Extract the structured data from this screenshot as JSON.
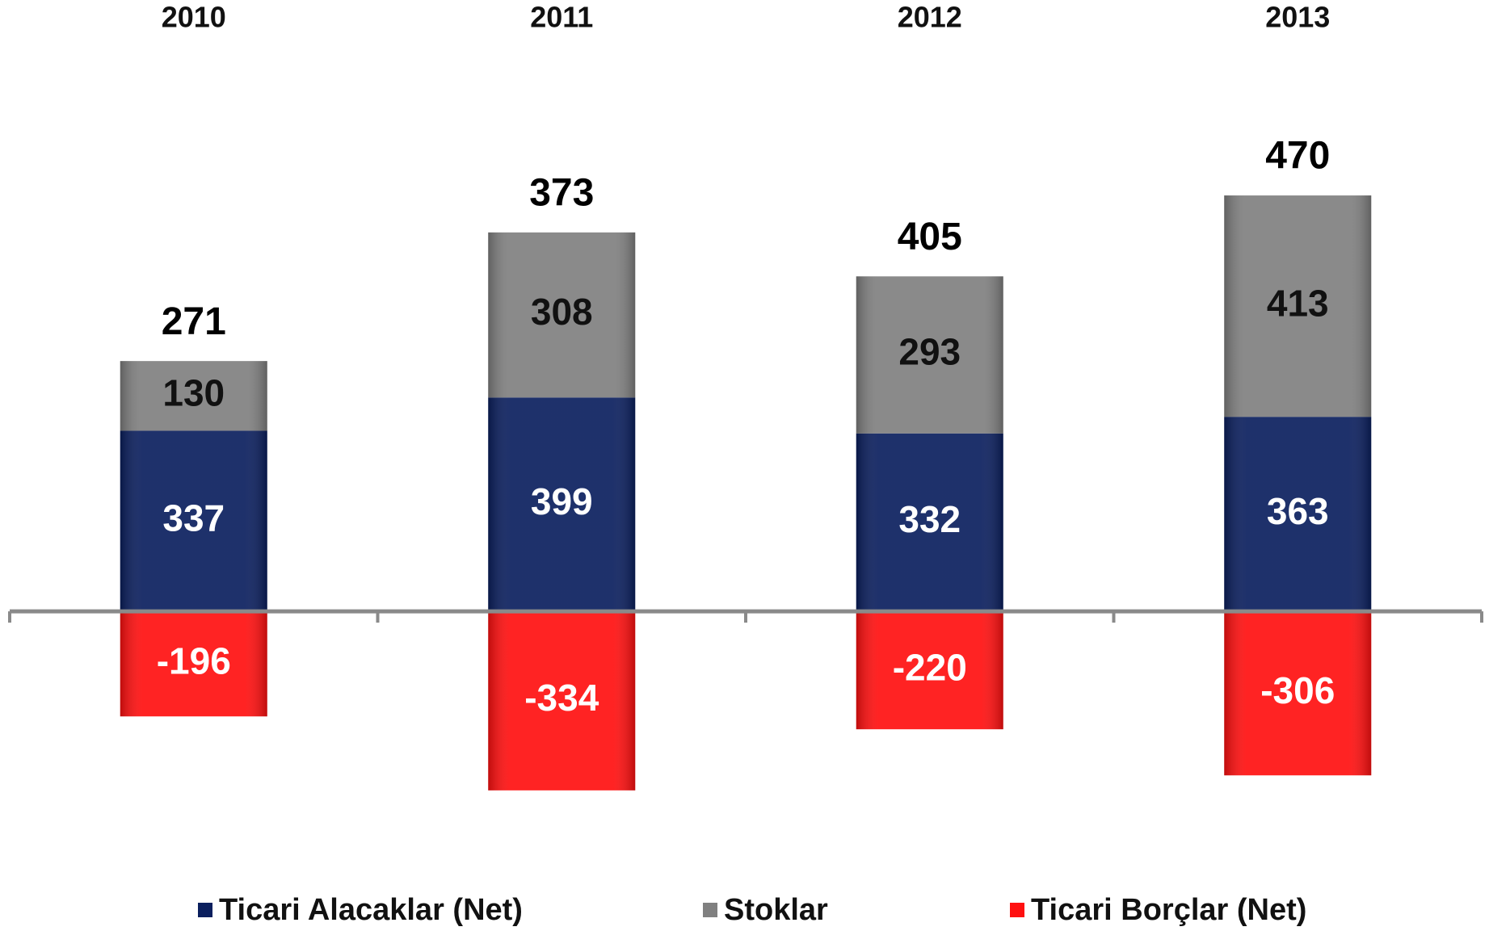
{
  "chart_data": {
    "type": "stacked-bar",
    "categories": [
      "2010",
      "2011",
      "2012",
      "2013"
    ],
    "series": [
      {
        "name": "Ticari Alacaklar (Net)",
        "color": "#0b1f5e",
        "values": [
          337,
          399,
          332,
          363
        ]
      },
      {
        "name": "Stoklar",
        "color": "#808080",
        "values": [
          130,
          308,
          293,
          413
        ]
      },
      {
        "name": "Ticari Borçlar (Net)",
        "color": "#ff1010",
        "values": [
          -196,
          -334,
          -220,
          -306
        ]
      }
    ],
    "totals": [
      271,
      373,
      405,
      470
    ],
    "ylim": [
      -500,
      1100
    ]
  }
}
